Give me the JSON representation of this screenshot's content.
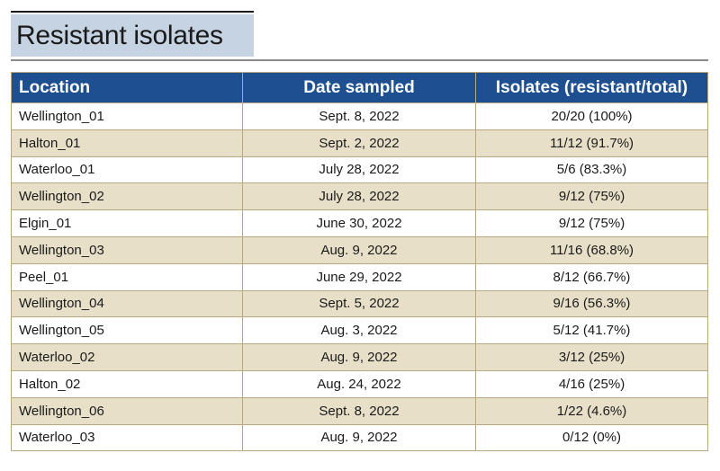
{
  "title": "Resistant isolates",
  "table": {
    "headers": {
      "location": "Location",
      "date": "Date sampled",
      "isolates": "Isolates (resistant/total)"
    },
    "rows": [
      {
        "location": "Wellington_01",
        "date": "Sept. 8, 2022",
        "isolates": "20/20 (100%)"
      },
      {
        "location": "Halton_01",
        "date": "Sept. 2, 2022",
        "isolates": "11/12 (91.7%)"
      },
      {
        "location": "Waterloo_01",
        "date": "July 28, 2022",
        "isolates": "5/6 (83.3%)"
      },
      {
        "location": "Wellington_02",
        "date": "July 28, 2022",
        "isolates": "9/12 (75%)"
      },
      {
        "location": "Elgin_01",
        "date": "June 30, 2022",
        "isolates": "9/12 (75%)"
      },
      {
        "location": "Wellington_03",
        "date": "Aug. 9, 2022",
        "isolates": "11/16 (68.8%)"
      },
      {
        "location": "Peel_01",
        "date": "June 29, 2022",
        "isolates": "8/12 (66.7%)"
      },
      {
        "location": "Wellington_04",
        "date": "Sept. 5, 2022",
        "isolates": "9/16 (56.3%)"
      },
      {
        "location": "Wellington_05",
        "date": "Aug. 3, 2022",
        "isolates": "5/12 (41.7%)"
      },
      {
        "location": "Waterloo_02",
        "date": "Aug. 9, 2022",
        "isolates": "3/12 (25%)"
      },
      {
        "location": "Halton_02",
        "date": "Aug. 24, 2022",
        "isolates": "4/16 (25%)"
      },
      {
        "location": "Wellington_06",
        "date": "Sept. 8, 2022",
        "isolates": "1/22 (4.6%)"
      },
      {
        "location": "Waterloo_03",
        "date": "Aug. 9, 2022",
        "isolates": "0/12 (0%)"
      }
    ]
  },
  "colors": {
    "header_blue": "#1d4f91",
    "title_bg": "#c5d3e2",
    "stripe_tan": "#e8dfc9",
    "border_tan": "#b9a77f"
  }
}
